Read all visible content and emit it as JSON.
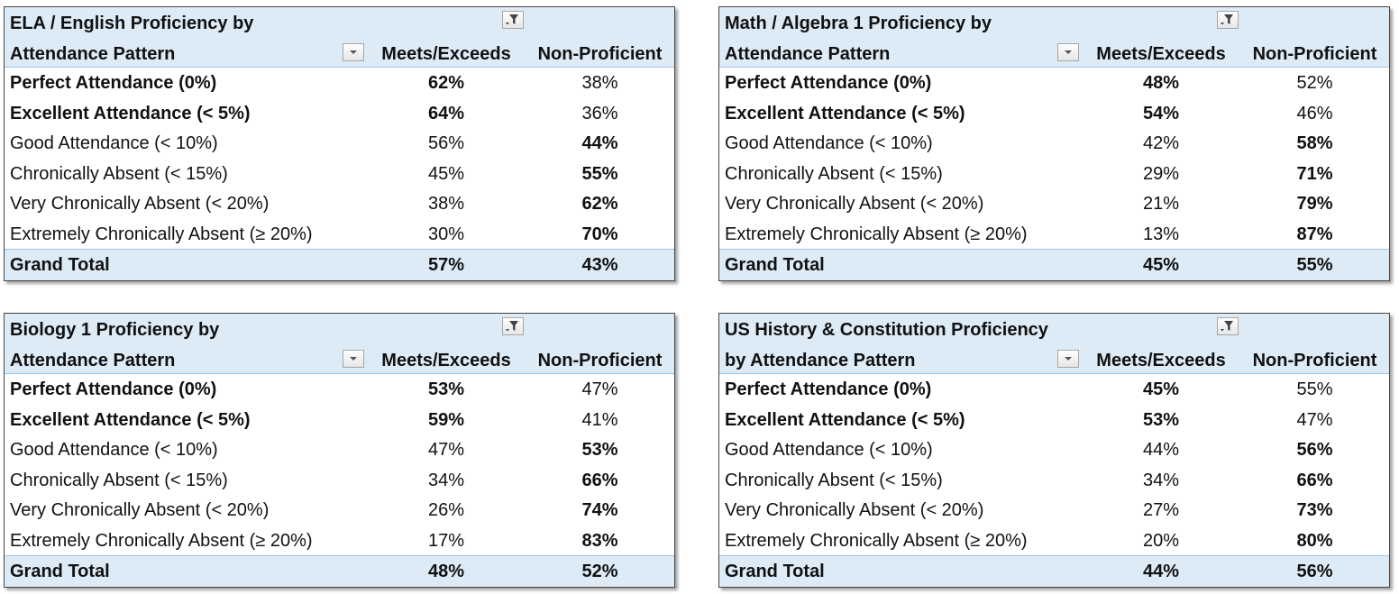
{
  "chart_data": [
    {
      "type": "table",
      "title_line1": "ELA / English Proficiency by",
      "title_line2": "Attendance Pattern",
      "columns": [
        "Meets/Exceeds",
        "Non-Proficient"
      ],
      "rows": [
        {
          "label": "Perfect Attendance (0%)",
          "meets": "62%",
          "non": "38%",
          "bold_label": true,
          "bold_col": "meets"
        },
        {
          "label": "Excellent Attendance (< 5%)",
          "meets": "64%",
          "non": "36%",
          "bold_label": true,
          "bold_col": "meets"
        },
        {
          "label": "Good Attendance (< 10%)",
          "meets": "56%",
          "non": "44%",
          "bold_label": false,
          "bold_col": "non"
        },
        {
          "label": "Chronically Absent (< 15%)",
          "meets": "45%",
          "non": "55%",
          "bold_label": false,
          "bold_col": "non"
        },
        {
          "label": "Very Chronically Absent (< 20%)",
          "meets": "38%",
          "non": "62%",
          "bold_label": false,
          "bold_col": "non"
        },
        {
          "label": "Extremely Chronically Absent (≥ 20%)",
          "meets": "30%",
          "non": "70%",
          "bold_label": false,
          "bold_col": "non"
        }
      ],
      "total": {
        "label": "Grand Total",
        "meets": "57%",
        "non": "43%"
      }
    },
    {
      "type": "table",
      "title_line1": "Math / Algebra 1 Proficiency by",
      "title_line2": "Attendance Pattern",
      "columns": [
        "Meets/Exceeds",
        "Non-Proficient"
      ],
      "rows": [
        {
          "label": "Perfect Attendance (0%)",
          "meets": "48%",
          "non": "52%",
          "bold_label": true,
          "bold_col": "meets"
        },
        {
          "label": "Excellent Attendance (< 5%)",
          "meets": "54%",
          "non": "46%",
          "bold_label": true,
          "bold_col": "meets"
        },
        {
          "label": "Good Attendance (< 10%)",
          "meets": "42%",
          "non": "58%",
          "bold_label": false,
          "bold_col": "non"
        },
        {
          "label": "Chronically Absent (< 15%)",
          "meets": "29%",
          "non": "71%",
          "bold_label": false,
          "bold_col": "non"
        },
        {
          "label": "Very Chronically Absent (< 20%)",
          "meets": "21%",
          "non": "79%",
          "bold_label": false,
          "bold_col": "non"
        },
        {
          "label": "Extremely Chronically Absent (≥ 20%)",
          "meets": "13%",
          "non": "87%",
          "bold_label": false,
          "bold_col": "non"
        }
      ],
      "total": {
        "label": "Grand Total",
        "meets": "45%",
        "non": "55%"
      }
    },
    {
      "type": "table",
      "title_line1": "Biology 1 Proficiency by",
      "title_line2": "Attendance Pattern",
      "columns": [
        "Meets/Exceeds",
        "Non-Proficient"
      ],
      "rows": [
        {
          "label": "Perfect Attendance (0%)",
          "meets": "53%",
          "non": "47%",
          "bold_label": true,
          "bold_col": "meets"
        },
        {
          "label": "Excellent Attendance (< 5%)",
          "meets": "59%",
          "non": "41%",
          "bold_label": true,
          "bold_col": "meets"
        },
        {
          "label": "Good Attendance (< 10%)",
          "meets": "47%",
          "non": "53%",
          "bold_label": false,
          "bold_col": "non"
        },
        {
          "label": "Chronically Absent (< 15%)",
          "meets": "34%",
          "non": "66%",
          "bold_label": false,
          "bold_col": "non"
        },
        {
          "label": "Very Chronically Absent (< 20%)",
          "meets": "26%",
          "non": "74%",
          "bold_label": false,
          "bold_col": "non"
        },
        {
          "label": "Extremely Chronically Absent (≥ 20%)",
          "meets": "17%",
          "non": "83%",
          "bold_label": false,
          "bold_col": "non"
        }
      ],
      "total": {
        "label": "Grand Total",
        "meets": "48%",
        "non": "52%"
      }
    },
    {
      "type": "table",
      "title_line1": "US History & Constitution Proficiency",
      "title_line2": "by Attendance Pattern",
      "columns": [
        "Meets/Exceeds",
        "Non-Proficient"
      ],
      "rows": [
        {
          "label": "Perfect Attendance (0%)",
          "meets": "45%",
          "non": "55%",
          "bold_label": true,
          "bold_col": "meets"
        },
        {
          "label": "Excellent Attendance (< 5%)",
          "meets": "53%",
          "non": "47%",
          "bold_label": true,
          "bold_col": "meets"
        },
        {
          "label": "Good Attendance (< 10%)",
          "meets": "44%",
          "non": "56%",
          "bold_label": false,
          "bold_col": "non"
        },
        {
          "label": "Chronically Absent (< 15%)",
          "meets": "34%",
          "non": "66%",
          "bold_label": false,
          "bold_col": "non"
        },
        {
          "label": "Very Chronically Absent (< 20%)",
          "meets": "27%",
          "non": "73%",
          "bold_label": false,
          "bold_col": "non"
        },
        {
          "label": "Extremely Chronically Absent (≥ 20%)",
          "meets": "20%",
          "non": "80%",
          "bold_label": false,
          "bold_col": "non"
        }
      ],
      "total": {
        "label": "Grand Total",
        "meets": "44%",
        "non": "56%"
      }
    }
  ],
  "icons": {
    "filter": "filter-icon",
    "dropdown": "dropdown-arrow-icon"
  },
  "colors": {
    "header_bg": "#ddebf7",
    "header_rule": "#9bc2e6"
  }
}
